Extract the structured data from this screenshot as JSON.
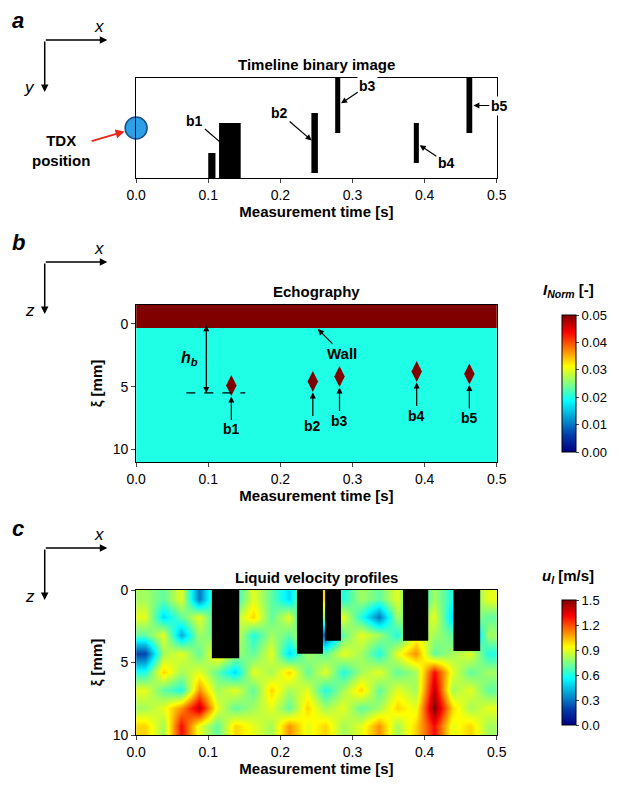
{
  "chart_data": [
    {
      "type": "binary_image",
      "letter": "a",
      "title": "Timeline binary image",
      "axis_arrows": [
        "x",
        "y"
      ],
      "x_label": "Measurement time [s]",
      "xlim": [
        0,
        0.5
      ],
      "xticks": [
        {
          "value": 0,
          "label": "0.0"
        },
        {
          "value": 0.1,
          "label": "0.1"
        },
        {
          "value": 0.2,
          "label": "0.2"
        },
        {
          "value": 0.3,
          "label": "0.3"
        },
        {
          "value": 0.4,
          "label": "0.4"
        },
        {
          "value": 0.5,
          "label": "0.5"
        }
      ],
      "ylim": [
        1,
        0
      ],
      "tick_labels": "x",
      "color": "#000000",
      "bubbles": [
        {
          "name": "b1",
          "parts": [
            {
              "t": [
                0.1,
                0.11
              ],
              "y": [
                0.75,
                1
              ]
            },
            {
              "t": [
                0.115,
                0.145
              ],
              "y": [
                0.45,
                1
              ]
            }
          ]
        },
        {
          "name": "b2",
          "parts": [
            {
              "t": [
                0.243,
                0.252
              ],
              "y": [
                0.35,
                0.95
              ]
            }
          ]
        },
        {
          "name": "b3",
          "parts": [
            {
              "t": [
                0.276,
                0.283
              ],
              "y": [
                0,
                0.55
              ]
            }
          ]
        },
        {
          "name": "b4",
          "parts": [
            {
              "t": [
                0.385,
                0.392
              ],
              "y": [
                0.45,
                0.85
              ]
            }
          ]
        },
        {
          "name": "b5",
          "parts": [
            {
              "t": [
                0.458,
                0.466
              ],
              "y": [
                0,
                0.55
              ]
            }
          ]
        }
      ],
      "transducer": {
        "label": "TDX position",
        "t": 0,
        "y": 0.5,
        "color": "#2e9fe6"
      }
    },
    {
      "type": "heatmap",
      "letter": "b",
      "title": "Echography",
      "axis_arrows": [
        "x",
        "z"
      ],
      "x_label": "Measurement time [s]",
      "y_label": "ξ [mm]",
      "xlim": [
        0,
        0.5
      ],
      "xticks": [
        {
          "value": 0,
          "label": "0.0"
        },
        {
          "value": 0.1,
          "label": "0.1"
        },
        {
          "value": 0.2,
          "label": "0.2"
        },
        {
          "value": 0.3,
          "label": "0.3"
        },
        {
          "value": 0.4,
          "label": "0.4"
        },
        {
          "value": 0.5,
          "label": "0.5"
        }
      ],
      "ylim": [
        11,
        -1.5
      ],
      "yticks": [
        0,
        5,
        10
      ],
      "cells": {
        "x_edges": [
          0,
          0.5
        ],
        "y_edges": [
          -1.5,
          0.3,
          11
        ],
        "z": [
          [
            0.05
          ],
          [
            0.02
          ]
        ]
      },
      "colorbar": {
        "symbol": "I",
        "subscript": "Norm",
        "unit": "[-]",
        "range": [
          0,
          0.05
        ],
        "ticks": [
          {
            "value": 0,
            "label": "0.00"
          },
          {
            "value": 0.01,
            "label": "0.01"
          },
          {
            "value": 0.02,
            "label": "0.02"
          },
          {
            "value": 0.03,
            "label": "0.03"
          },
          {
            "value": 0.04,
            "label": "0.04"
          },
          {
            "value": 0.05,
            "label": "0.05"
          }
        ]
      },
      "wall": {
        "label": "Wall"
      },
      "echoes": [
        {
          "name": "b1",
          "t": 0.132,
          "xi": 4.9,
          "value": 0.05
        },
        {
          "name": "b2",
          "t": 0.245,
          "xi": 4.6,
          "value": 0.05
        },
        {
          "name": "b3",
          "t": 0.282,
          "xi": 4.2,
          "value": 0.05
        },
        {
          "name": "b4",
          "t": 0.389,
          "xi": 3.8,
          "value": 0.05
        },
        {
          "name": "b5",
          "t": 0.462,
          "xi": 4.0,
          "value": 0.05
        }
      ],
      "h_b": {
        "symbol": "h",
        "subscript": "b",
        "from": 0,
        "to": 5.5
      }
    },
    {
      "type": "heatmap",
      "letter": "c",
      "title": "Liquid velocity profiles",
      "axis_arrows": [
        "x",
        "z"
      ],
      "x_label": "Measurement time [s]",
      "y_label": "ξ [mm]",
      "xlim": [
        0,
        0.5
      ],
      "xticks": [
        {
          "value": 0,
          "label": "0.0"
        },
        {
          "value": 0.1,
          "label": "0.1"
        },
        {
          "value": 0.2,
          "label": "0.2"
        },
        {
          "value": 0.3,
          "label": "0.3"
        },
        {
          "value": 0.4,
          "label": "0.4"
        },
        {
          "value": 0.5,
          "label": "0.5"
        }
      ],
      "ylim": [
        10,
        0
      ],
      "yticks": [
        0,
        5,
        10
      ],
      "cells": {
        "x_edges": [
          0,
          0.025,
          0.05,
          0.075,
          0.1,
          0.125,
          0.15,
          0.175,
          0.2,
          0.225,
          0.25,
          0.275,
          0.3,
          0.325,
          0.35,
          0.375,
          0.4,
          0.425,
          0.45,
          0.475,
          0.5
        ],
        "y_edges": [
          0,
          1.25,
          2.5,
          3.75,
          5,
          6.25,
          7.5,
          8.75,
          10
        ],
        "z": [
          [
            0.8,
            0.7,
            0.9,
            0.3,
            0.8,
            0.6,
            0.9,
            0.7,
            0.5,
            0.9,
            1.0,
            0.6,
            0.8,
            0.7,
            0.9,
            0.5,
            0.8,
            0.6,
            0.7,
            0.9
          ],
          [
            0.9,
            0.5,
            0.7,
            0.9,
            0.6,
            0.8,
            1.0,
            0.7,
            0.9,
            0.4,
            0.8,
            0.9,
            0.6,
            0.3,
            0.8,
            0.7,
            0.9,
            0.5,
            0.8,
            0.7
          ],
          [
            0.7,
            0.9,
            0.4,
            0.8,
            0.7,
            0.9,
            0.6,
            0.8,
            0.7,
            0.9,
            0.2,
            0.7,
            0.9,
            0.8,
            0.6,
            0.9,
            0.8,
            0.7,
            0.3,
            0.8
          ],
          [
            0.2,
            0.8,
            0.9,
            0.7,
            1.0,
            0.8,
            0.7,
            0.9,
            0.5,
            0.8,
            0.7,
            0.9,
            0.8,
            0.6,
            0.9,
            1.1,
            0.7,
            0.8,
            0.9,
            0.6
          ],
          [
            0.6,
            1.0,
            0.8,
            0.9,
            0.7,
            0.5,
            0.9,
            0.8,
            1.0,
            0.7,
            0.9,
            0.6,
            0.8,
            0.9,
            0.7,
            0.8,
            1.3,
            0.9,
            0.7,
            0.8
          ],
          [
            0.9,
            0.7,
            0.6,
            1.1,
            0.8,
            0.9,
            0.7,
            1.0,
            0.8,
            0.9,
            0.6,
            0.8,
            1.0,
            0.7,
            0.9,
            0.8,
            1.4,
            0.8,
            0.9,
            0.7
          ],
          [
            0.8,
            0.9,
            1.1,
            1.4,
            0.9,
            0.7,
            0.8,
            0.9,
            0.7,
            1.0,
            0.8,
            0.9,
            0.7,
            0.8,
            1.0,
            0.9,
            1.5,
            1.0,
            0.8,
            0.9
          ],
          [
            1.0,
            0.8,
            1.3,
            0.9,
            0.7,
            1.0,
            0.9,
            0.8,
            1.1,
            0.9,
            1.0,
            0.8,
            0.9,
            1.1,
            0.8,
            1.0,
            1.3,
            0.9,
            1.0,
            0.8
          ]
        ]
      },
      "colorbar": {
        "symbol": "u",
        "subscript": "l",
        "unit": "[m/s]",
        "range": [
          0,
          1.5
        ],
        "ticks": [
          {
            "value": 0,
            "label": "0.0"
          },
          {
            "value": 0.3,
            "label": "0.3"
          },
          {
            "value": 0.6,
            "label": "0.6"
          },
          {
            "value": 0.9,
            "label": "0.9"
          },
          {
            "value": 1.2,
            "label": "1.2"
          },
          {
            "value": 1.5,
            "label": "1.5"
          }
        ]
      },
      "mask_color": "#000000",
      "bubble_masks": [
        {
          "t": [
            0.105,
            0.143
          ],
          "xi": [
            0,
            4.7
          ]
        },
        {
          "t": [
            0.223,
            0.259
          ],
          "xi": [
            0,
            4.4
          ]
        },
        {
          "t": [
            0.262,
            0.284
          ],
          "xi": [
            0,
            3.5
          ]
        },
        {
          "t": [
            0.37,
            0.405
          ],
          "xi": [
            0,
            3.5
          ]
        },
        {
          "t": [
            0.44,
            0.477
          ],
          "xi": [
            0,
            4.2
          ]
        }
      ]
    }
  ]
}
